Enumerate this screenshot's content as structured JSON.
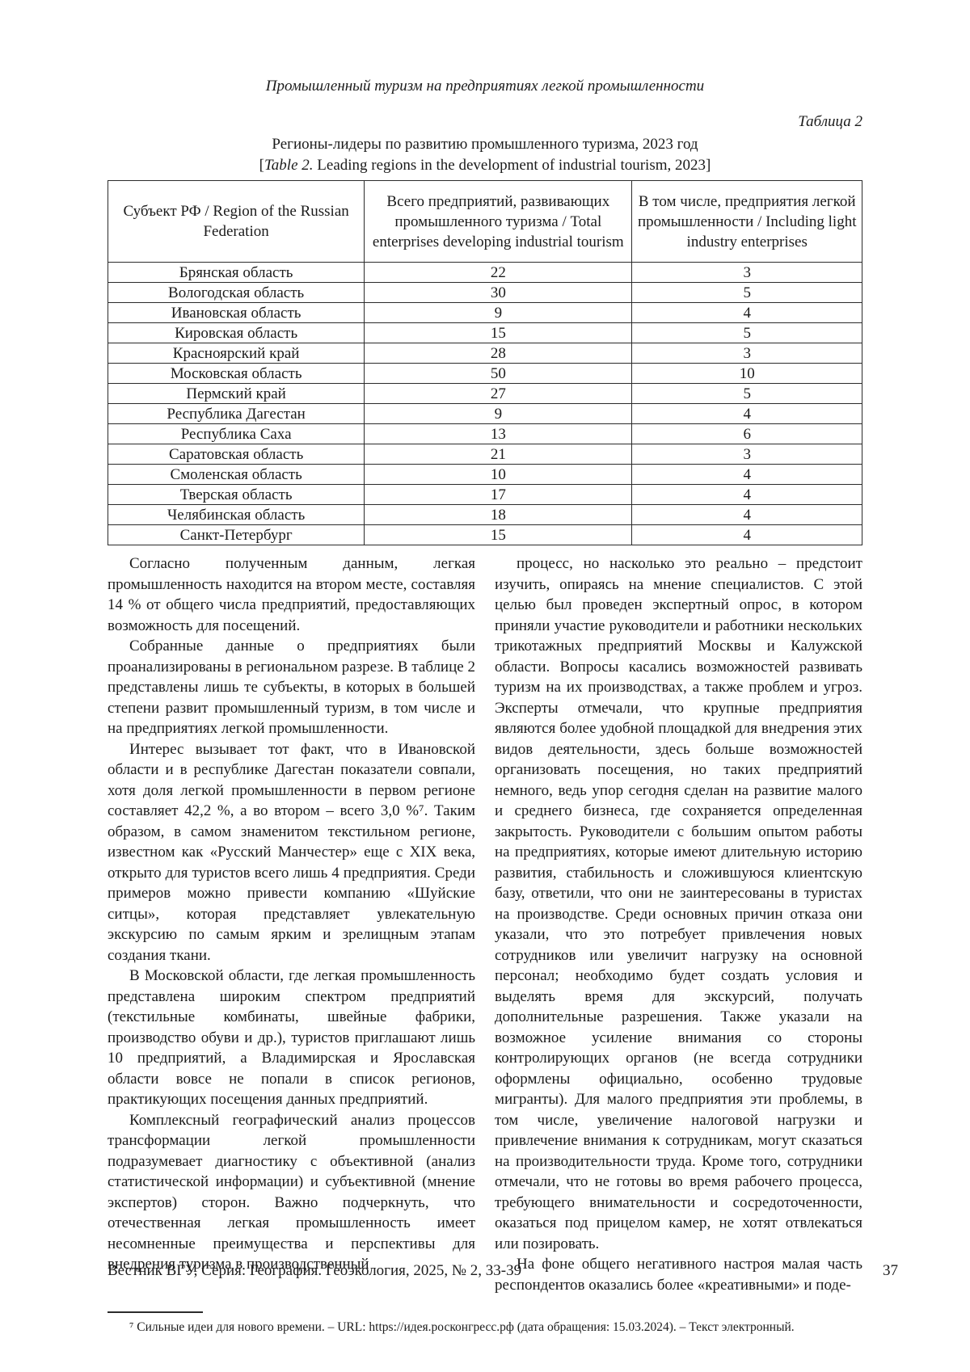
{
  "page": {
    "running_head": "Промышленный туризм на предприятиях легкой промышленности"
  },
  "table": {
    "label": "Таблица 2",
    "caption_ru": "Регионы-лидеры по развитию промышленного туризма, 2023 год",
    "caption_en_open": "[",
    "caption_en_label": "Table 2.",
    "caption_en_rest": " Leading regions in the development of industrial tourism, 2023]",
    "headers": {
      "region": "Субъект РФ / Region of the Russian Federation",
      "total": "Всего предприятий, развивающих промышленного туризма / Total enterprises developing industrial tourism",
      "light": "В том числе, предприятия легкой промышленности / Including light industry enterprises"
    },
    "rows": [
      {
        "region": "Брянская область",
        "total": "22",
        "light": "3"
      },
      {
        "region": "Вологодская область",
        "total": "30",
        "light": "5"
      },
      {
        "region": "Ивановская область",
        "total": "9",
        "light": "4"
      },
      {
        "region": "Кировская область",
        "total": "15",
        "light": "5"
      },
      {
        "region": "Красноярский край",
        "total": "28",
        "light": "3"
      },
      {
        "region": "Московская область",
        "total": "50",
        "light": "10"
      },
      {
        "region": "Пермский край",
        "total": "27",
        "light": "5"
      },
      {
        "region": "Республика Дагестан",
        "total": "9",
        "light": "4"
      },
      {
        "region": "Республика Саха",
        "total": "13",
        "light": "6"
      },
      {
        "region": "Саратовская область",
        "total": "21",
        "light": "3"
      },
      {
        "region": "Смоленская область",
        "total": "10",
        "light": "4"
      },
      {
        "region": "Тверская область",
        "total": "17",
        "light": "4"
      },
      {
        "region": "Челябинская область",
        "total": "18",
        "light": "4"
      },
      {
        "region": "Санкт-Петербург",
        "total": "15",
        "light": "4"
      }
    ]
  },
  "body": {
    "left": [
      "Согласно полученным данным, легкая промышленность находится на втором месте, составляя 14 % от общего числа предприятий, предоставляющих возможность для посещений.",
      "Собранные данные о предприятиях были проанализированы в региональном разрезе. В таблице 2 представлены лишь те субъекты, в которых в большей степени развит промышленный туризм, в том числе и на предприятиях легкой промышленности.",
      "Интерес вызывает тот факт, что в Ивановской области и в республике Дагестан показатели совпали, хотя доля легкой промышленности в первом регионе составляет 42,2 %, а во втором – всего 3,0 %⁷. Таким образом, в самом знаменитом текстильном регионе, известном как «Русский Манчестер» еще с XIX века, открыто для туристов всего лишь 4 предприятия. Среди примеров можно привести компанию «Шуйские ситцы», которая представляет увлекательную экскурсию по самым ярким и зрелищным этапам создания ткани.",
      "В Московской области, где легкая промышленность представлена широким спектром предприятий (текстильные комбинаты, швейные фабрики, производство обуви и др.), туристов приглашают лишь 10 предприятий, а Владимирская и Ярославская области вовсе не попали в список регионов, практикующих посещения данных предприятий.",
      "Комплексный географический анализ процессов трансформации легкой промышленности подразумевает диагностику с объективной (анализ статистической информации) и субъективной (мнение экспертов) сторон. Важно подчеркнуть, что отечественная легкая промышленность имеет несомненные преимущества и перспективы для внедрения туризма в производственный"
    ],
    "right": [
      "процесс, но насколько это реально – предстоит изучить, опираясь на мнение специалистов. С этой целью был проведен экспертный опрос, в котором приняли участие руководители и работники нескольких трикотажных предприятий Москвы и Калужской области. Вопросы касались возможностей развивать туризм на их производствах, а также проблем и угроз. Эксперты отмечали, что крупные предприятия являются более удобной площадкой для внедрения этих видов деятельности, здесь больше возможностей организовать посещения, но таких предприятий немного, ведь упор сегодня сделан на развитие малого и среднего бизнеса, где сохраняется определенная закрытость. Руководители с большим опытом работы на предприятиях, которые имеют длительную историю развития, стабильность и сложившуюся клиентскую базу, ответили, что они не заинтересованы в туристах на производстве. Среди основных причин отказа они указали, что это потребует привлечения новых сотрудников или увеличит нагрузку на основной персонал; необходимо будет создать условия и выделять время для экскурсий, получать дополнительные разрешения. Также указали на возможное усиление внимания со стороны контролирующих органов (не всегда сотрудники оформлены официально, особенно трудовые мигранты). Для малого предприятия эти проблемы, в том числе, увеличение налоговой нагрузки и привлечение внимания к сотрудникам, могут сказаться на производительности труда. Кроме того, сотрудники отмечали, что не готовы во время рабочего процесса, требующего внимательности и сосредоточенности, оказаться под прицелом камер, не хотят отвлекаться или позировать.",
      "На фоне общего негативного настроя малая часть респондентов оказались более «креативными» и поде-"
    ]
  },
  "footnote": {
    "text": "⁷ Сильные идеи для нового времени. – URL: https://идея.росконгресс.рф (дата обращения: 15.03.2024). – Текст электронный."
  },
  "footer": {
    "journal": "Вестник ВГУ, Серия: География. Геоэкология, 2025, № 2, 33-39",
    "page_number": "37"
  }
}
